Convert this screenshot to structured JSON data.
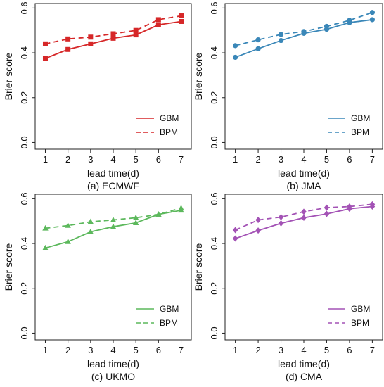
{
  "chart_data": [
    {
      "type": "line",
      "caption": "(a) ECMWF",
      "xlabel": "lead time(d)",
      "ylabel": "Brier score",
      "x": [
        1,
        2,
        3,
        4,
        5,
        6,
        7
      ],
      "xticks": [
        "1",
        "2",
        "3",
        "4",
        "5",
        "6",
        "7"
      ],
      "ylim": [
        -0.03,
        0.62
      ],
      "yticks": [
        "0.0",
        "0.2",
        "0.4",
        "0.6"
      ],
      "ytick_values": [
        0.0,
        0.2,
        0.4,
        0.6
      ],
      "color": "#d62728",
      "marker": "square",
      "legend_position": "bottom-right",
      "series": [
        {
          "name": "GBM",
          "style": "solid",
          "values": [
            0.375,
            0.415,
            0.44,
            0.465,
            0.48,
            0.525,
            0.54
          ]
        },
        {
          "name": "BPM",
          "style": "dashed",
          "values": [
            0.44,
            0.462,
            0.47,
            0.485,
            0.5,
            0.548,
            0.565
          ]
        }
      ]
    },
    {
      "type": "line",
      "caption": "(b) JMA",
      "xlabel": "lead time(d)",
      "ylabel": "Brier score",
      "x": [
        1,
        2,
        3,
        4,
        5,
        6,
        7
      ],
      "xticks": [
        "1",
        "2",
        "3",
        "4",
        "5",
        "6",
        "7"
      ],
      "ylim": [
        -0.03,
        0.62
      ],
      "yticks": [
        "0.0",
        "0.2",
        "0.4",
        "0.6"
      ],
      "ytick_values": [
        0.0,
        0.2,
        0.4,
        0.6
      ],
      "color": "#3a87b8",
      "marker": "circle",
      "legend_position": "bottom-right",
      "series": [
        {
          "name": "GBM",
          "style": "solid",
          "values": [
            0.38,
            0.418,
            0.455,
            0.487,
            0.505,
            0.535,
            0.548
          ]
        },
        {
          "name": "BPM",
          "style": "dashed",
          "values": [
            0.432,
            0.458,
            0.482,
            0.495,
            0.518,
            0.545,
            0.58
          ]
        }
      ]
    },
    {
      "type": "line",
      "caption": "(c) UKMO",
      "xlabel": "lead time(d)",
      "ylabel": "Brier score",
      "x": [
        1,
        2,
        3,
        4,
        5,
        6,
        7
      ],
      "xticks": [
        "1",
        "2",
        "3",
        "4",
        "5",
        "6",
        "7"
      ],
      "ylim": [
        -0.03,
        0.62
      ],
      "yticks": [
        "0.0",
        "0.2",
        "0.4",
        "0.6"
      ],
      "ytick_values": [
        0.0,
        0.2,
        0.4,
        0.6
      ],
      "color": "#5cb85c",
      "marker": "triangle",
      "legend_position": "bottom-right",
      "series": [
        {
          "name": "GBM",
          "style": "solid",
          "values": [
            0.38,
            0.408,
            0.452,
            0.475,
            0.492,
            0.53,
            0.548
          ]
        },
        {
          "name": "BPM",
          "style": "dashed",
          "values": [
            0.468,
            0.48,
            0.497,
            0.505,
            0.515,
            0.53,
            0.558
          ]
        }
      ]
    },
    {
      "type": "line",
      "caption": "(d) CMA",
      "xlabel": "lead time(d)",
      "ylabel": "Brier score",
      "x": [
        1,
        2,
        3,
        4,
        5,
        6,
        7
      ],
      "xticks": [
        "1",
        "2",
        "3",
        "4",
        "5",
        "6",
        "7"
      ],
      "ylim": [
        -0.03,
        0.62
      ],
      "yticks": [
        "0.0",
        "0.2",
        "0.4",
        "0.6"
      ],
      "ytick_values": [
        0.0,
        0.2,
        0.4,
        0.6
      ],
      "color": "#a352b5",
      "marker": "diamond",
      "legend_position": "bottom-right",
      "series": [
        {
          "name": "GBM",
          "style": "solid",
          "values": [
            0.422,
            0.458,
            0.49,
            0.515,
            0.532,
            0.555,
            0.565
          ]
        },
        {
          "name": "BPM",
          "style": "dashed",
          "values": [
            0.46,
            0.505,
            0.518,
            0.542,
            0.56,
            0.565,
            0.575
          ]
        }
      ]
    }
  ]
}
